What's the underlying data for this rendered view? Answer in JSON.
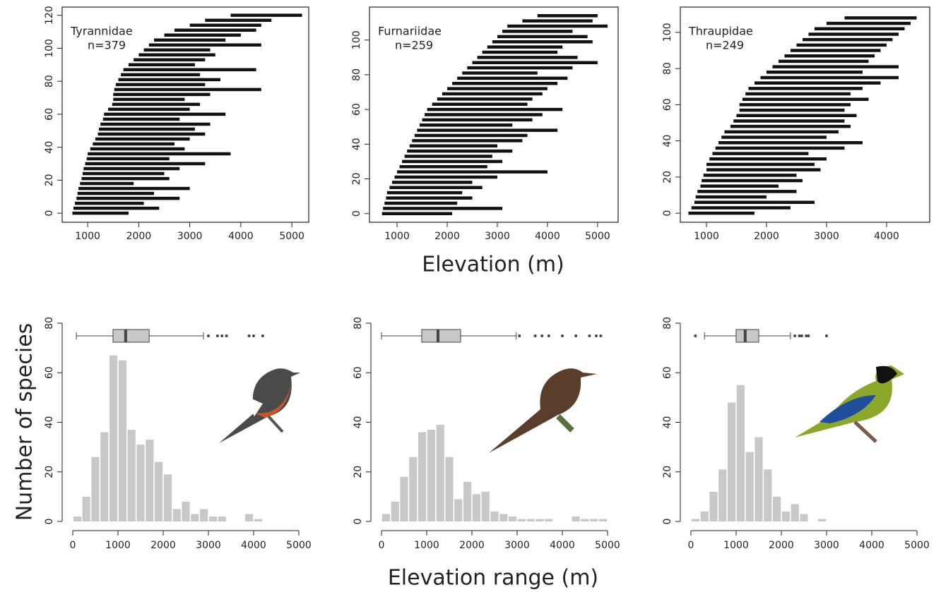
{
  "shared_labels": {
    "top_x": "Elevation (m)",
    "bottom_x": "Elevation range (m)",
    "bottom_y": "Number of species"
  },
  "chart_data": [
    {
      "type": "range",
      "title": "Tyrannidae",
      "annotation": "n=379",
      "color": "#111111",
      "y": [
        0,
        3,
        6,
        9,
        12,
        15,
        18,
        21,
        24,
        27,
        30,
        33,
        36,
        39,
        42,
        45,
        48,
        51,
        54,
        57,
        60,
        63,
        66,
        69,
        72,
        75,
        78,
        81,
        84,
        87,
        90,
        93,
        96,
        99,
        102,
        105,
        108,
        111,
        114,
        117,
        120
      ],
      "low": [
        700,
        720,
        750,
        780,
        800,
        820,
        850,
        880,
        900,
        920,
        950,
        980,
        1000,
        1050,
        1100,
        1150,
        1200,
        1220,
        1250,
        1300,
        1320,
        1400,
        1480,
        1500,
        1500,
        1520,
        1550,
        1600,
        1650,
        1700,
        1800,
        1900,
        2000,
        2100,
        2200,
        2300,
        2500,
        2700,
        3000,
        3300,
        3800
      ],
      "high": [
        1800,
        2400,
        2100,
        2800,
        2300,
        3000,
        1900,
        2600,
        2500,
        2800,
        3300,
        2600,
        3800,
        2900,
        2700,
        3000,
        3300,
        3100,
        3400,
        2800,
        3700,
        3000,
        3200,
        2900,
        3400,
        4400,
        3300,
        3600,
        3200,
        4300,
        3100,
        3300,
        3500,
        3400,
        4400,
        3700,
        4000,
        4300,
        4400,
        4600,
        5200
      ],
      "xlim": [
        500,
        5330
      ],
      "xticks": [
        1000,
        2000,
        3000,
        4000,
        5000
      ],
      "ylim": [
        -5.5,
        125
      ],
      "yticks": [
        0,
        20,
        40,
        60,
        80,
        100,
        120
      ]
    },
    {
      "type": "range",
      "title": "Furnariidae",
      "annotation": "n=259",
      "color": "#111111",
      "y": [
        0,
        3,
        6,
        9,
        12,
        15,
        18,
        21,
        24,
        27,
        30,
        33,
        36,
        39,
        42,
        45,
        48,
        51,
        54,
        57,
        60,
        63,
        66,
        69,
        72,
        75,
        78,
        81,
        84,
        87,
        90,
        93,
        96,
        99,
        102,
        105,
        108,
        111,
        114
      ],
      "low": [
        700,
        720,
        750,
        780,
        800,
        850,
        900,
        950,
        1000,
        1050,
        1100,
        1150,
        1200,
        1250,
        1300,
        1350,
        1400,
        1450,
        1500,
        1550,
        1600,
        1700,
        1800,
        1900,
        2000,
        2100,
        2200,
        2300,
        2400,
        2500,
        2600,
        2700,
        2800,
        2900,
        3000,
        3100,
        3200,
        3500,
        3800
      ],
      "high": [
        2100,
        3100,
        2200,
        2500,
        2300,
        2700,
        2500,
        3000,
        4000,
        2800,
        3100,
        2900,
        3300,
        3000,
        3500,
        3600,
        4200,
        3300,
        3700,
        3900,
        4300,
        3600,
        3700,
        3900,
        4000,
        4200,
        4400,
        3800,
        4500,
        5000,
        4600,
        4200,
        4300,
        4900,
        4800,
        4500,
        5200,
        4900,
        5000
      ],
      "xlim": [
        450,
        5410
      ],
      "xticks": [
        1000,
        2000,
        3000,
        4000,
        5000
      ],
      "ylim": [
        -5,
        119
      ],
      "yticks": [
        0,
        20,
        40,
        60,
        80,
        100
      ]
    },
    {
      "type": "range",
      "title": "Thraupidae",
      "annotation": "n=249",
      "color": "#111111",
      "y": [
        0,
        3,
        6,
        9,
        12,
        15,
        18,
        21,
        24,
        27,
        30,
        33,
        36,
        39,
        42,
        45,
        48,
        51,
        54,
        57,
        60,
        63,
        66,
        69,
        72,
        75,
        78,
        81,
        84,
        87,
        90,
        93,
        96,
        99,
        102,
        105,
        108
      ],
      "low": [
        700,
        750,
        800,
        820,
        850,
        900,
        920,
        950,
        1000,
        1000,
        1050,
        1100,
        1150,
        1200,
        1250,
        1300,
        1400,
        1450,
        1500,
        1550,
        1550,
        1600,
        1650,
        1700,
        1800,
        1900,
        2000,
        2100,
        2200,
        2300,
        2400,
        2500,
        2600,
        2700,
        2800,
        3000,
        3300
      ],
      "high": [
        1800,
        2400,
        2800,
        2000,
        2500,
        2200,
        2600,
        2500,
        2900,
        2800,
        3000,
        2700,
        3300,
        3600,
        3000,
        3200,
        3400,
        3300,
        3500,
        3300,
        3400,
        3700,
        3400,
        3600,
        3900,
        4200,
        3600,
        4200,
        3700,
        3800,
        3900,
        4000,
        4100,
        4200,
        4300,
        4400,
        4500
      ],
      "xlim": [
        565,
        4718
      ],
      "xticks": [
        1000,
        2000,
        3000,
        4000
      ],
      "ylim": [
        -5,
        114
      ],
      "yticks": [
        0,
        20,
        40,
        60,
        80,
        100
      ]
    },
    {
      "type": "histogram",
      "color": "#c8c8c8",
      "bins": [
        0,
        200,
        400,
        600,
        800,
        1000,
        1200,
        1400,
        1600,
        1800,
        2000,
        2200,
        2400,
        2600,
        2800,
        3000,
        3200,
        3400,
        3600,
        3800,
        4000,
        4200
      ],
      "counts": [
        2,
        10,
        26,
        36,
        67,
        65,
        37,
        31,
        33,
        24,
        19,
        5,
        8,
        3,
        5,
        2,
        2,
        0,
        0,
        3,
        1
      ],
      "boxplot": {
        "whisker_low": 80,
        "q1": 890,
        "median": 1170,
        "q3": 1690,
        "whisker_high": 2890,
        "outliers": [
          3000,
          3200,
          3300,
          3400,
          3900,
          4000,
          4200
        ]
      },
      "xlim": [
        0,
        5000
      ],
      "xticks": [
        0,
        1000,
        2000,
        3000,
        4000,
        5000
      ],
      "ylim": [
        0,
        80
      ],
      "yticks": [
        0,
        20,
        40,
        60,
        80
      ]
    },
    {
      "type": "histogram",
      "color": "#c8c8c8",
      "bins": [
        0,
        200,
        400,
        600,
        800,
        1000,
        1200,
        1400,
        1600,
        1800,
        2000,
        2200,
        2400,
        2600,
        2800,
        3000,
        3200,
        3400,
        3600,
        3800,
        4000,
        4200,
        4400,
        4600,
        4800,
        5000
      ],
      "counts": [
        3,
        8,
        18,
        26,
        36,
        37,
        39,
        26,
        9,
        16,
        11,
        12,
        4,
        3,
        2,
        1,
        1,
        1,
        1,
        0,
        0,
        2,
        1,
        1,
        1
      ],
      "boxplot": {
        "whisker_low": 0,
        "q1": 890,
        "median": 1250,
        "q3": 1750,
        "whisker_high": 2980,
        "outliers": [
          3050,
          3400,
          3550,
          3700,
          4000,
          4300,
          4600,
          4750,
          4850
        ]
      },
      "xlim": [
        0,
        5000
      ],
      "xticks": [
        0,
        1000,
        2000,
        3000,
        4000,
        5000
      ],
      "ylim": [
        0,
        80
      ],
      "yticks": [
        0,
        20,
        40,
        60,
        80
      ]
    },
    {
      "type": "histogram",
      "color": "#c8c8c8",
      "bins": [
        0,
        200,
        400,
        600,
        800,
        1000,
        1200,
        1400,
        1600,
        1800,
        2000,
        2200,
        2400,
        2600,
        2800,
        3000
      ],
      "counts": [
        1,
        4,
        12,
        21,
        48,
        55,
        28,
        34,
        21,
        10,
        4,
        7,
        3,
        0,
        1
      ],
      "boxplot": {
        "whisker_low": 300,
        "q1": 1000,
        "median": 1200,
        "q3": 1500,
        "whisker_high": 2200,
        "outliers": [
          100,
          2300,
          2400,
          2450,
          2550,
          2600,
          3000
        ]
      },
      "xlim": [
        0,
        5000
      ],
      "xticks": [
        0,
        1000,
        2000,
        3000,
        4000,
        5000
      ],
      "ylim": [
        0,
        80
      ],
      "yticks": [
        0,
        20,
        40,
        60,
        80
      ]
    }
  ]
}
